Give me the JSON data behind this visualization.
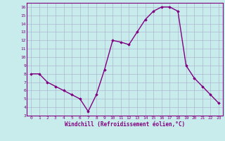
{
  "x": [
    0,
    1,
    2,
    3,
    4,
    5,
    6,
    7,
    8,
    9,
    10,
    11,
    12,
    13,
    14,
    15,
    16,
    17,
    18,
    19,
    20,
    21,
    22,
    23
  ],
  "y": [
    8,
    8,
    7,
    6.5,
    6,
    5.5,
    5,
    3.5,
    5.5,
    8.5,
    12,
    11.8,
    11.5,
    13,
    14.5,
    15.5,
    16,
    16,
    15.5,
    9,
    7.5,
    6.5,
    5.5,
    4.5
  ],
  "line_color": "#800080",
  "marker": "D",
  "marker_size": 1.8,
  "bg_color": "#c8ecec",
  "grid_color": "#aaaacc",
  "xlabel": "Windchill (Refroidissement éolien,°C)",
  "xlabel_color": "#800080",
  "tick_color": "#800080",
  "xlim": [
    -0.5,
    23.5
  ],
  "ylim": [
    3,
    16.5
  ],
  "yticks": [
    3,
    4,
    5,
    6,
    7,
    8,
    9,
    10,
    11,
    12,
    13,
    14,
    15,
    16
  ],
  "xticks": [
    0,
    1,
    2,
    3,
    4,
    5,
    6,
    7,
    8,
    9,
    10,
    11,
    12,
    13,
    14,
    15,
    16,
    17,
    18,
    19,
    20,
    21,
    22,
    23
  ],
  "line_width": 1.0
}
